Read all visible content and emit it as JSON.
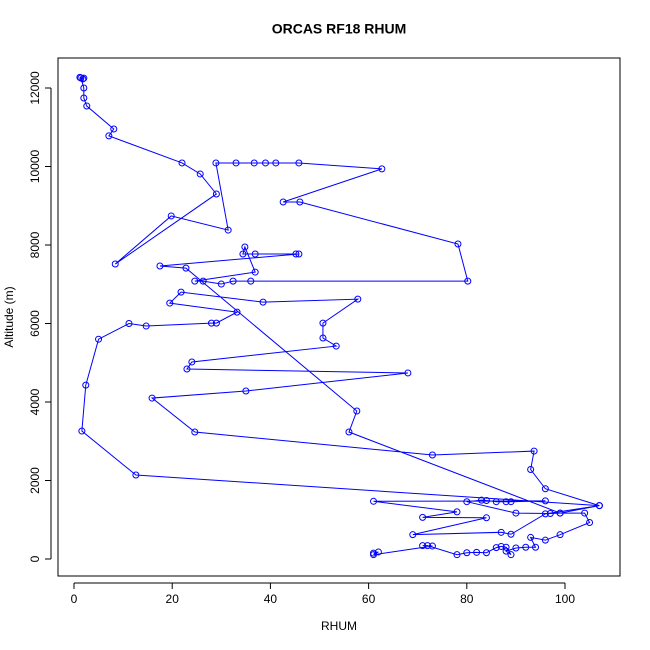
{
  "chart_data": {
    "type": "line",
    "title": "ORCAS RF18 RHUM",
    "x_label": "RHUM",
    "y_label": "Altitude (m)",
    "color": "#0000ff",
    "xlim": [
      -3.26,
      111.2
    ],
    "ylim": [
      -433,
      12764
    ],
    "xticks": [
      0,
      20,
      40,
      60,
      80,
      100
    ],
    "yticks": [
      0,
      2000,
      4000,
      6000,
      8000,
      10000,
      12000
    ],
    "x": [
      61,
      62,
      61,
      73,
      71,
      72,
      78,
      80,
      82,
      84,
      86,
      87,
      88,
      89,
      88,
      90,
      92,
      94,
      93,
      96,
      99,
      105,
      104,
      99,
      97,
      90,
      80,
      83,
      84,
      86,
      88,
      89,
      96,
      61,
      78,
      71,
      84,
      69,
      87,
      89,
      96,
      107,
      12.6,
      1.6,
      2.4,
      5,
      11.2,
      14.7,
      28,
      29,
      33.2,
      19.5,
      21.8,
      38.5,
      57.8,
      50.7,
      50.7,
      53.4,
      24,
      23,
      68,
      35,
      15.9,
      24.6,
      73,
      93.7,
      93,
      96,
      107,
      99,
      56,
      57.6,
      22.8,
      17.5,
      45.8,
      45.2,
      36.9,
      34.4,
      34.8,
      36.9,
      24.6,
      26.3,
      30,
      32.4,
      36,
      80.2,
      78.2,
      46,
      42.6,
      62.7,
      45.8,
      41.1,
      39,
      36.7,
      33,
      28.9,
      31.4,
      19.8,
      8.4,
      29,
      25.7,
      22,
      7.1,
      8.1,
      2.6,
      2,
      2,
      1.4,
      1.8,
      1.2,
      2
    ],
    "values": [
      150,
      180,
      110,
      330,
      340,
      340,
      110,
      160,
      170,
      160,
      290,
      320,
      300,
      110,
      200,
      280,
      300,
      300,
      550,
      480,
      620,
      930,
      1170,
      1170,
      1160,
      1170,
      1460,
      1500,
      1490,
      1460,
      1460,
      1460,
      1480,
      1470,
      1200,
      1060,
      1050,
      620,
      680,
      630,
      1150,
      1360,
      2140,
      3260,
      4430,
      5600,
      6000,
      5935,
      6010,
      6010,
      6290,
      6520,
      6800,
      6545,
      6620,
      6010,
      5630,
      5425,
      5020,
      4840,
      4740,
      4280,
      4100,
      3235,
      2650,
      2750,
      2280,
      1790,
      1360,
      1170,
      3235,
      3770,
      7410,
      7465,
      7770,
      7770,
      7770,
      7770,
      7950,
      7310,
      7080,
      7080,
      7005,
      7080,
      7080,
      7080,
      8025,
      9095,
      9095,
      9940,
      10090,
      10090,
      10090,
      10090,
      10090,
      10090,
      8380,
      8740,
      7515,
      9300,
      9810,
      10090,
      10780,
      10955,
      11540,
      11745,
      12000,
      12255,
      12230,
      12270,
      12250
    ]
  }
}
